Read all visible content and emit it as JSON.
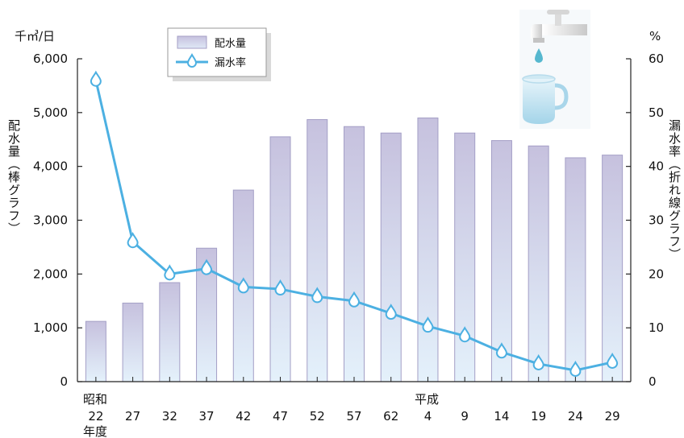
{
  "chart_data": {
    "type": "bar+line",
    "categories": [
      "22",
      "27",
      "32",
      "37",
      "42",
      "47",
      "52",
      "57",
      "62",
      "4",
      "9",
      "14",
      "19",
      "24",
      "29"
    ],
    "era_labels": {
      "showa_era": "昭和",
      "heisei_era": "平成",
      "year_suffix": "年度"
    },
    "series": [
      {
        "name": "配水量",
        "type": "bar",
        "axis": "left",
        "values": [
          1120,
          1460,
          1840,
          2480,
          3560,
          4550,
          4870,
          4740,
          4620,
          4900,
          4620,
          4480,
          4380,
          4160,
          4210
        ]
      },
      {
        "name": "漏水率",
        "type": "line",
        "axis": "right",
        "values": [
          56,
          26,
          20,
          21,
          17.6,
          17.2,
          15.8,
          15,
          12.7,
          10.3,
          8.5,
          5.5,
          3.3,
          2.1,
          3.6
        ]
      }
    ],
    "left_axis": {
      "unit": "千㎥/日",
      "label": "配水量（棒グラフ）",
      "ylim": [
        0,
        6000
      ],
      "ticks": [
        "0",
        "1,000",
        "2,000",
        "3,000",
        "4,000",
        "5,000",
        "6,000"
      ]
    },
    "right_axis": {
      "unit": "%",
      "label": "漏水率（折れ線グラフ）",
      "ylim": [
        0,
        60
      ],
      "ticks": [
        "0",
        "10",
        "20",
        "30",
        "40",
        "50",
        "60"
      ]
    },
    "legend": {
      "placement": "top-left",
      "entries": [
        "配水量",
        "漏水率"
      ]
    },
    "colors": {
      "bar_top": "#c6c1de",
      "bar_bottom": "#e4f1fb",
      "bar_stroke": "#a49fc6",
      "line": "#4cb0e2",
      "marker_fill": "#ffffff"
    },
    "decoration_icon": "faucet-and-cup-icon"
  }
}
